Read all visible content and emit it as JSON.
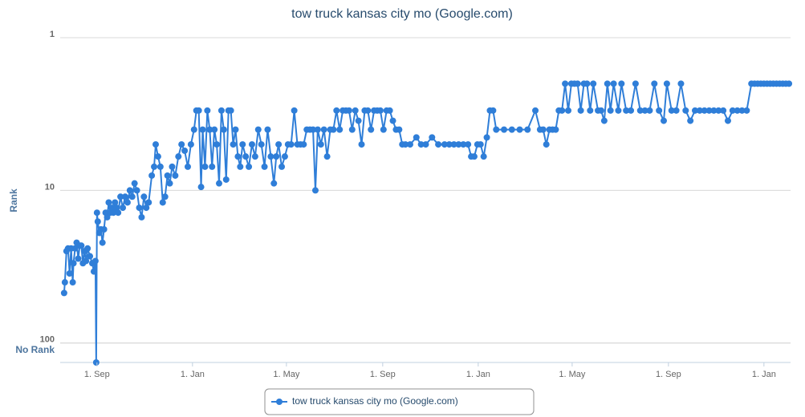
{
  "chart_data": {
    "type": "line",
    "title": "tow truck kansas city mo (Google.com)",
    "y_label": "Rank",
    "log_scale": true,
    "y_reversed": true,
    "grid": true,
    "legend": "bottom",
    "xlim": [
      -47,
      886
    ],
    "xticks": [
      {
        "value": 0,
        "label": "1. Sep"
      },
      {
        "value": 122,
        "label": "1. Jan"
      },
      {
        "value": 242,
        "label": "1. May"
      },
      {
        "value": 365,
        "label": "1. Sep"
      },
      {
        "value": 487,
        "label": "1. Jan"
      },
      {
        "value": 607,
        "label": "1. May"
      },
      {
        "value": 730,
        "label": "1. Sep"
      },
      {
        "value": 852,
        "label": "1. Jan"
      }
    ],
    "ylim": [
      1,
      134
    ],
    "yticks": [
      1,
      10,
      100,
      {
        "value": 100,
        "label": "No Rank"
      }
    ],
    "x": [
      -42,
      -41,
      -39,
      -37,
      -35,
      -33,
      -31,
      -30,
      -28,
      -26,
      -24,
      -22,
      -20,
      -18,
      -16,
      -14,
      -12,
      -9,
      -6,
      -4,
      -2,
      -1,
      0,
      1,
      3,
      5,
      7,
      9,
      11,
      13,
      15,
      17,
      19,
      21,
      23,
      25,
      27,
      30,
      33,
      36,
      39,
      42,
      45,
      48,
      51,
      54,
      57,
      60,
      63,
      66,
      70,
      73,
      75,
      78,
      81,
      84,
      87,
      90,
      93,
      96,
      100,
      104,
      108,
      112,
      116,
      120,
      124,
      127,
      130,
      133,
      135,
      138,
      141,
      144,
      147,
      150,
      153,
      156,
      159,
      162,
      165,
      168,
      171,
      174,
      177,
      180,
      183,
      186,
      190,
      194,
      198,
      202,
      206,
      210,
      214,
      218,
      222,
      226,
      229,
      232,
      236,
      240,
      244,
      248,
      252,
      256,
      260,
      264,
      268,
      272,
      276,
      279,
      282,
      286,
      290,
      294,
      298,
      302,
      306,
      310,
      314,
      318,
      322,
      326,
      330,
      334,
      338,
      342,
      346,
      350,
      354,
      358,
      362,
      366,
      370,
      374,
      378,
      382,
      386,
      390,
      394,
      400,
      408,
      414,
      420,
      428,
      436,
      444,
      450,
      456,
      462,
      468,
      474,
      478,
      482,
      486,
      490,
      494,
      498,
      502,
      506,
      510,
      520,
      530,
      540,
      550,
      560,
      566,
      570,
      574,
      578,
      582,
      586,
      590,
      594,
      598,
      602,
      606,
      610,
      614,
      618,
      622,
      626,
      630,
      634,
      640,
      644,
      648,
      652,
      656,
      660,
      666,
      670,
      676,
      682,
      688,
      694,
      700,
      706,
      712,
      718,
      724,
      728,
      734,
      740,
      746,
      752,
      758,
      764,
      770,
      776,
      782,
      788,
      794,
      800,
      806,
      812,
      818,
      824,
      830,
      836,
      840,
      844,
      848,
      852,
      856,
      860,
      864,
      868,
      872,
      876,
      880,
      884
    ],
    "series": [
      {
        "name": "tow truck kansas city mo (Google.com)",
        "color": "#2f7ed8",
        "values": [
          47,
          40,
          25,
          24,
          35,
          24,
          40,
          30,
          24,
          22,
          28,
          23,
          23,
          30,
          25,
          29,
          24,
          27,
          30,
          34,
          29,
          134,
          14,
          16,
          19,
          18,
          22,
          18,
          14,
          15,
          12,
          14,
          13,
          14,
          12,
          13,
          14,
          11,
          13,
          11,
          12,
          10,
          11,
          9,
          10,
          13,
          15,
          11,
          13,
          12,
          8,
          7,
          5,
          6,
          7,
          12,
          11,
          8,
          9,
          7,
          8,
          6,
          5,
          5.5,
          7,
          5,
          4,
          3,
          3,
          9.5,
          4,
          7,
          3,
          4,
          7,
          4,
          5,
          9,
          3,
          4,
          8.5,
          3,
          3,
          5,
          4,
          6,
          7,
          5,
          6,
          7,
          5,
          6,
          4,
          5,
          7,
          4,
          6,
          9,
          6,
          5,
          7,
          6,
          5,
          5,
          3,
          5,
          5,
          5,
          4,
          4,
          4,
          10,
          4,
          5,
          4,
          6,
          4,
          4,
          3,
          4,
          3,
          3,
          3,
          4,
          3,
          3.5,
          5,
          3,
          3,
          4,
          3,
          3,
          3,
          4,
          3,
          3,
          3.5,
          4,
          4,
          5,
          5,
          5,
          4.5,
          5,
          5,
          4.5,
          5,
          5,
          5,
          5,
          5,
          5,
          5,
          6,
          6,
          5,
          5,
          6,
          4.5,
          3,
          3,
          4,
          4,
          4,
          4,
          4,
          3,
          4,
          4,
          5,
          4,
          4,
          4,
          3,
          3,
          2,
          3,
          2,
          2,
          2,
          3,
          2,
          2,
          3,
          2,
          3,
          3,
          3.5,
          2,
          3,
          2,
          3,
          2,
          3,
          3,
          2,
          3,
          3,
          3,
          2,
          3,
          3.5,
          2,
          3,
          3,
          2,
          3,
          3.5,
          3,
          3,
          3,
          3,
          3,
          3,
          3,
          3.5,
          3,
          3,
          3,
          3,
          2,
          2,
          2,
          2,
          2,
          2,
          2,
          2,
          2,
          2,
          2,
          2,
          2
        ]
      }
    ]
  }
}
